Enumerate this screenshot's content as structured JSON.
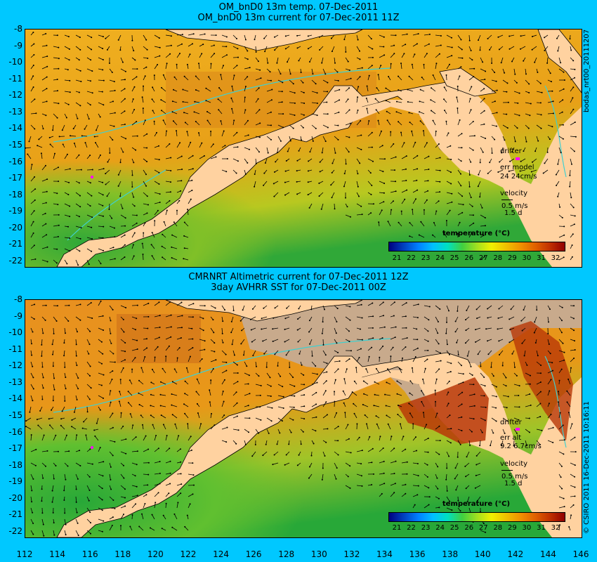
{
  "top_panel": {
    "title_line1": "OM_bnD0 13m temp. 07-Dec-2011",
    "title_line2": "OM_bnD0 13m current for 07-Dec-2011 11Z",
    "side_label": "bodas_nrt00_20111207",
    "drifter_label": "drifter",
    "err_label": "err model",
    "err_values": "24 24cm/s",
    "velocity_label": "velocity",
    "velocity_scale": "0.5 m/s",
    "velocity_days": "1.5 d",
    "legend_title": "temperature (°C)"
  },
  "bottom_panel": {
    "title_line1": "CMRNRT Altimetric current for 07-Dec-2011 12Z",
    "title_line2": "3day AVHRR SST for 07-Dec-2011 00Z",
    "side_label": "© CSIRO 2011   16-Dec-2011 10:16:11",
    "drifter_label": "drifter",
    "err_label": "err alt",
    "err_values": "9.2 6.7cm/s",
    "velocity_label": "velocity",
    "velocity_scale": "0.5 m/s",
    "velocity_days": "1.5 d",
    "legend_title": "temperature (°C)"
  },
  "colorbar_ticks": [
    "21",
    "22",
    "23",
    "24",
    "25",
    "26",
    "27",
    "28",
    "29",
    "30",
    "31",
    "32"
  ],
  "y_ticks": [
    "-8",
    "-9",
    "-10",
    "-11",
    "-12",
    "-13",
    "-14",
    "-15",
    "-16",
    "-17",
    "-18",
    "-19",
    "-20",
    "-21",
    "-22"
  ],
  "x_ticks": [
    "112",
    "114",
    "116",
    "118",
    "120",
    "122",
    "124",
    "126",
    "128",
    "130",
    "132",
    "134",
    "136",
    "138",
    "140",
    "142",
    "144",
    "146"
  ],
  "colors": {
    "background": "#00c8ff",
    "land": "#ffd2a0",
    "ocean_warm": "#e6a020",
    "ocean_cool": "#30b030",
    "cloud_gray": "#c8aa8c",
    "drifter_marker": "#ff00ff",
    "bathymetry": "#40d0d0"
  }
}
